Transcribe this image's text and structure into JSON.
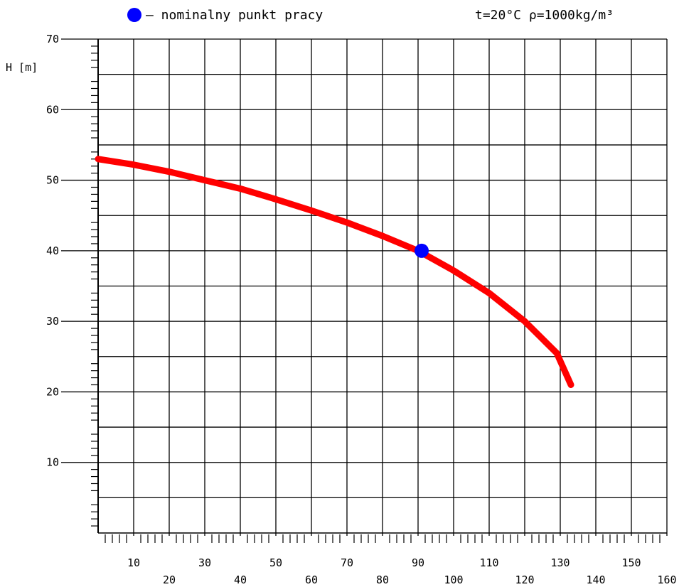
{
  "legend": {
    "marker_label": "– nominalny punkt pracy",
    "conditions": "t=20°C  ρ=1000kg/m³"
  },
  "chart_data": {
    "type": "line",
    "title": "",
    "xlabel": "",
    "ylabel": "H [m]",
    "xlim": [
      0,
      160
    ],
    "ylim": [
      0,
      70
    ],
    "x_ticks": [
      10,
      20,
      30,
      40,
      50,
      60,
      70,
      80,
      90,
      100,
      110,
      120,
      130,
      140,
      150,
      160
    ],
    "y_ticks": [
      10,
      20,
      30,
      40,
      50,
      60,
      70
    ],
    "grid": true,
    "series": [
      {
        "color": "#ff0000",
        "x": [
          0,
          10,
          20,
          30,
          40,
          50,
          60,
          70,
          80,
          90,
          100,
          110,
          120,
          129,
          133
        ],
        "y": [
          53,
          52.2,
          51.2,
          50.0,
          48.8,
          47.3,
          45.7,
          44.0,
          42.1,
          40.0,
          37.2,
          34.0,
          30.0,
          25.5,
          21
        ]
      }
    ],
    "nominal_point": {
      "x": 91,
      "y": 40,
      "color": "#0000ff"
    }
  }
}
